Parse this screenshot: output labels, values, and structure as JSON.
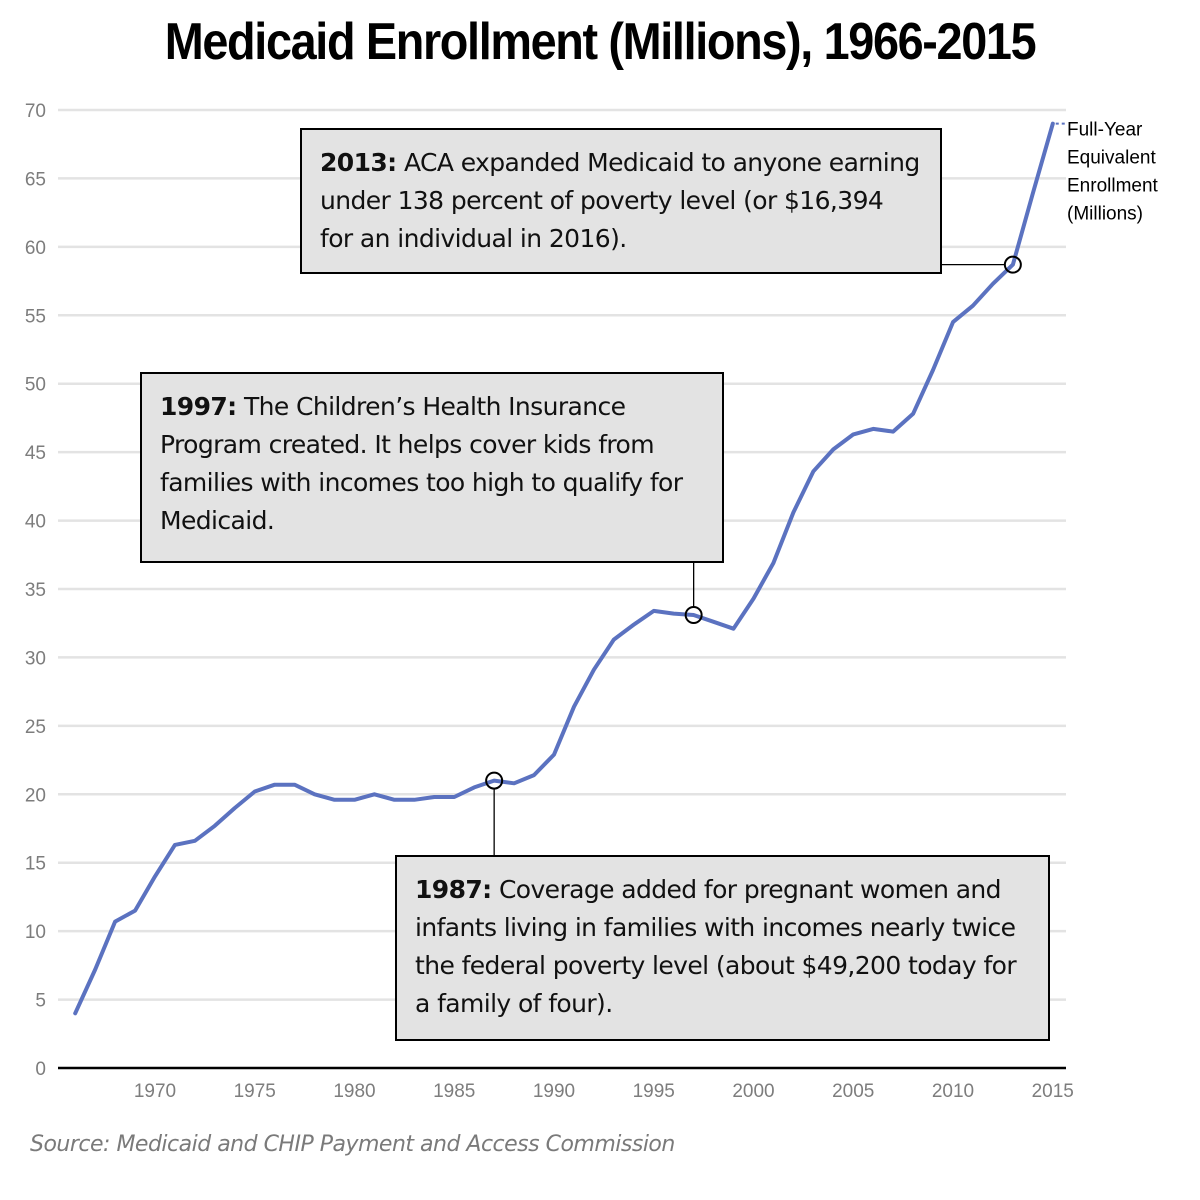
{
  "chart_data": {
    "type": "line",
    "title": "Medicaid Enrollment (Millions), 1966-2015",
    "xlabel": "",
    "ylabel": "",
    "ylim": [
      0,
      70
    ],
    "xlim": [
      1966,
      2015
    ],
    "grid": true,
    "y_ticks": [
      "0",
      "5",
      "10",
      "15",
      "20",
      "25",
      "30",
      "35",
      "40",
      "45",
      "50",
      "55",
      "60",
      "65",
      "70"
    ],
    "y_tick_values": [
      0,
      5,
      10,
      15,
      20,
      25,
      30,
      35,
      40,
      45,
      50,
      55,
      60,
      65,
      70
    ],
    "x_ticks": [
      "1970",
      "1975",
      "1980",
      "1985",
      "1990",
      "1995",
      "2000",
      "2005",
      "2010",
      "2015"
    ],
    "x_tick_values": [
      1970,
      1975,
      1980,
      1985,
      1990,
      1995,
      2000,
      2005,
      2010,
      2015
    ],
    "series": [
      {
        "name": "Full-Year Equivalent Enrollment (Millions)",
        "color": "#5b72c0",
        "x": [
          1966,
          1967,
          1968,
          1969,
          1970,
          1971,
          1972,
          1973,
          1974,
          1975,
          1976,
          1977,
          1978,
          1979,
          1980,
          1981,
          1982,
          1983,
          1984,
          1985,
          1986,
          1987,
          1988,
          1989,
          1990,
          1991,
          1992,
          1993,
          1994,
          1995,
          1996,
          1997,
          1998,
          1999,
          2000,
          2001,
          2002,
          2003,
          2004,
          2005,
          2006,
          2007,
          2008,
          2009,
          2010,
          2011,
          2012,
          2013,
          2014,
          2015
        ],
        "values": [
          4.0,
          7.2,
          10.7,
          11.5,
          14.0,
          16.3,
          16.6,
          17.7,
          19.0,
          20.2,
          20.7,
          20.7,
          20.0,
          19.6,
          19.6,
          20.0,
          19.6,
          19.6,
          19.8,
          19.8,
          20.5,
          21.0,
          20.8,
          21.4,
          22.9,
          26.4,
          29.1,
          31.3,
          32.4,
          33.4,
          33.2,
          33.1,
          32.6,
          32.1,
          34.3,
          36.9,
          40.6,
          43.6,
          45.2,
          46.3,
          46.7,
          46.5,
          47.8,
          51.0,
          54.5,
          55.7,
          57.3,
          58.7,
          63.9,
          69.0
        ]
      }
    ],
    "series_label_lines": [
      "Full-Year",
      "Equivalent",
      "Enrollment",
      "(Millions)"
    ],
    "legend": "end-of-line label, top-right",
    "annotations": [
      {
        "year": 2013,
        "value": 58.7,
        "bold": "2013:",
        "text": "ACA expanded Medicaid to anyone earning under 138 percent of poverty level (or $16,394 for an individual in 2016)."
      },
      {
        "year": 1997,
        "value": 33.1,
        "bold": "1997:",
        "text": "The Children’s Health Insurance Program created. It helps cover kids from families with incomes too high to qualify for Medicaid."
      },
      {
        "year": 1987,
        "value": 21.0,
        "bold": "1987:",
        "text": "Coverage added for pregnant women and infants living in families with incomes nearly twice the federal poverty level (about $49,200 today for a family of four)."
      }
    ],
    "source": "Source: Medicaid and CHIP Payment and Access Commission"
  },
  "colors": {
    "line": "#5b72c0",
    "grid": "#e3e3e3",
    "tick_text": "#7d7d7d",
    "annotation_bg": "#e3e3e3",
    "source_text": "#7a7a7a"
  }
}
